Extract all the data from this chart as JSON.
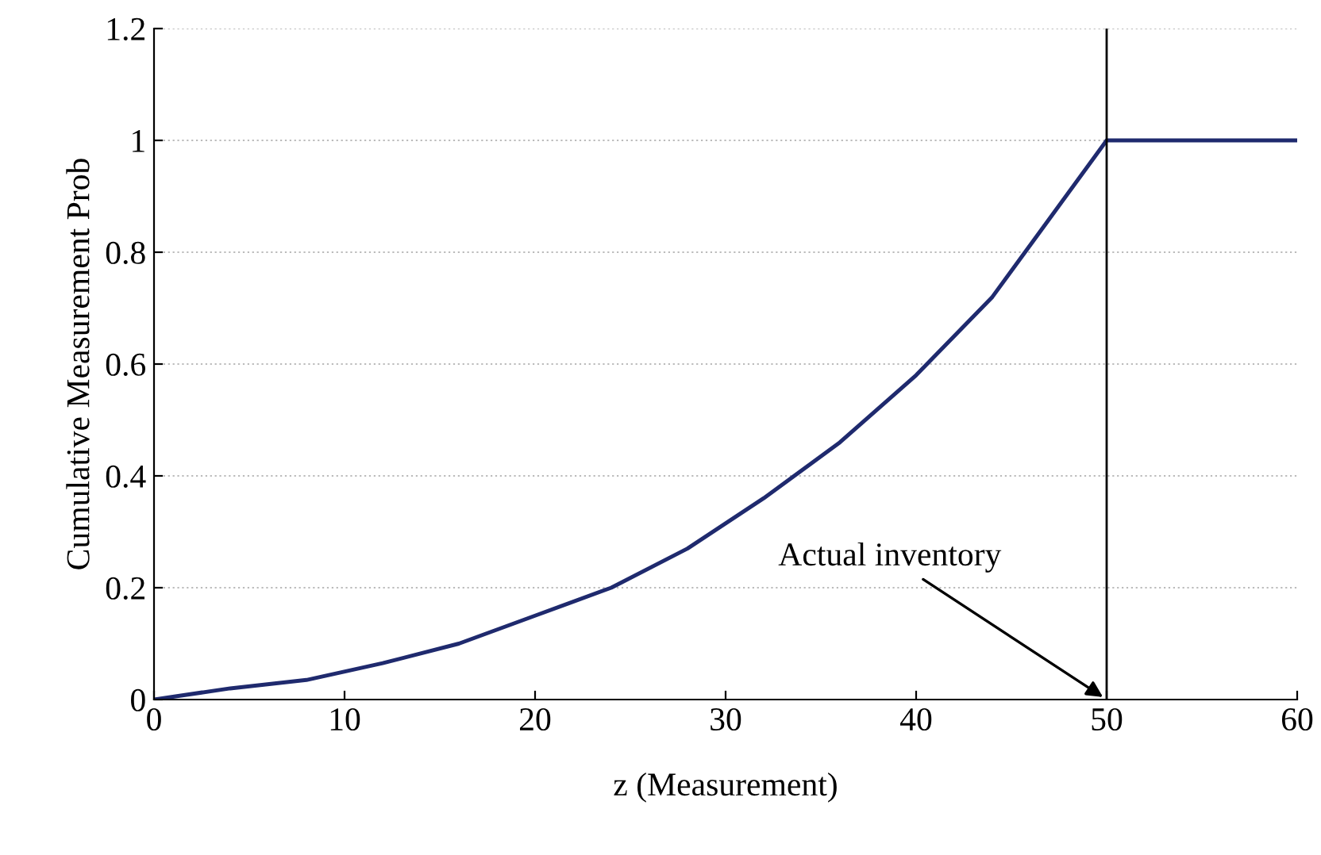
{
  "chart_data": {
    "type": "line",
    "xlabel": "z (Measurement)",
    "ylabel": "Cumulative Measurement Prob",
    "x": [
      0,
      4,
      8,
      12,
      16,
      20,
      24,
      28,
      32,
      36,
      40,
      44,
      47,
      50,
      60
    ],
    "series": [
      {
        "color": "#1f2a6e",
        "values": [
          0,
          0.02,
          0.035,
          0.065,
          0.1,
          0.15,
          0.2,
          0.27,
          0.36,
          0.46,
          0.58,
          0.72,
          0.86,
          1.0,
          1.0
        ]
      }
    ],
    "xlim": [
      0,
      60
    ],
    "xticks": [
      0,
      10,
      20,
      30,
      40,
      50,
      60
    ],
    "ylim": [
      0,
      1.2
    ],
    "yticks": [
      0,
      0.2,
      0.4,
      0.6,
      0.8,
      1,
      1.2
    ],
    "grid": "y",
    "marker": "none",
    "line_style": "solid",
    "ref_lines": [
      {
        "axis": "x",
        "value": 50,
        "color": "#000000"
      }
    ],
    "annotations": [
      {
        "text": "Actual inventory",
        "x": 50,
        "y": 0
      }
    ]
  }
}
